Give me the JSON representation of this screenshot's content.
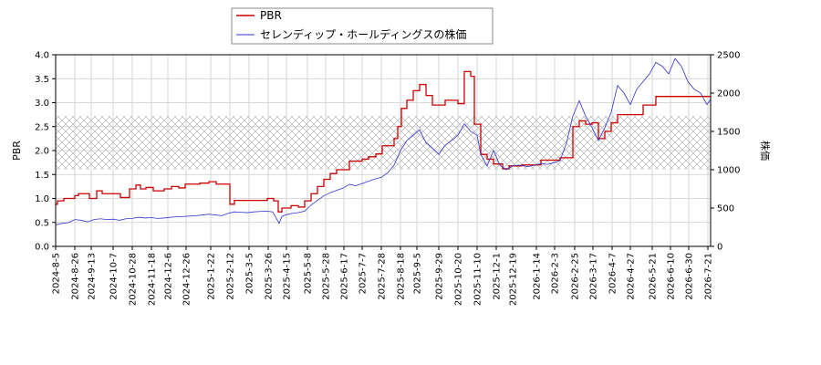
{
  "chart_data": {
    "type": "line",
    "title": "",
    "xlabel": "",
    "ylabel_left": "PBR",
    "ylabel_right": "株価",
    "ylim_left": [
      0,
      4.0
    ],
    "ylim_right": [
      0,
      2500
    ],
    "yticks_left": [
      "0.0",
      "0.5",
      "1.0",
      "1.5",
      "2.0",
      "2.5",
      "3.0",
      "3.5",
      "4.0"
    ],
    "yticks_right": [
      "0",
      "500",
      "1000",
      "1500",
      "2000",
      "2500"
    ],
    "x_start": "2024-08-05",
    "x_end": "2026-07-24",
    "xticks": [
      "2024-8-5",
      "2024-8-26",
      "2024-9-13",
      "2024-10-7",
      "2024-10-28",
      "2024-11-18",
      "2024-12-6",
      "2024-12-26",
      "2025-1-22",
      "2025-2-12",
      "2025-3-5",
      "2025-3-26",
      "2025-4-15",
      "2025-5-8",
      "2025-5-28",
      "2025-6-17",
      "2025-7-7",
      "2025-7-28",
      "2025-8-18",
      "2025-9-5",
      "2025-9-29",
      "2025-10-20",
      "2025-11-10",
      "2025-12-1",
      "2025-12-19",
      "2026-1-14",
      "2026-2-3",
      "2026-2-25",
      "2026-3-17",
      "2026-4-7",
      "2026-4-27",
      "2026-5-21",
      "2026-6-10",
      "2026-6-30",
      "2026-7-21"
    ],
    "grid": true,
    "legend_position": "top-center",
    "hatched_band_right": [
      1000,
      1700
    ],
    "series": [
      {
        "name": "PBR",
        "axis": "left",
        "color": "#cc0000",
        "style": "step",
        "points": [
          [
            "2024-08-05",
            0.88
          ],
          [
            "2024-08-07",
            0.95
          ],
          [
            "2024-08-14",
            1.0
          ],
          [
            "2024-08-26",
            1.06
          ],
          [
            "2024-08-30",
            1.1
          ],
          [
            "2024-09-11",
            1.0
          ],
          [
            "2024-09-19",
            1.16
          ],
          [
            "2024-09-25",
            1.1
          ],
          [
            "2024-10-15",
            1.02
          ],
          [
            "2024-10-25",
            1.2
          ],
          [
            "2024-11-01",
            1.28
          ],
          [
            "2024-11-06",
            1.2
          ],
          [
            "2024-11-12",
            1.23
          ],
          [
            "2024-11-20",
            1.16
          ],
          [
            "2024-12-02",
            1.2
          ],
          [
            "2024-12-10",
            1.25
          ],
          [
            "2024-12-18",
            1.22
          ],
          [
            "2024-12-25",
            1.3
          ],
          [
            "2025-01-10",
            1.32
          ],
          [
            "2025-01-20",
            1.35
          ],
          [
            "2025-01-28",
            1.3
          ],
          [
            "2025-02-12",
            0.88
          ],
          [
            "2025-02-17",
            0.96
          ],
          [
            "2025-03-25",
            1.0
          ],
          [
            "2025-04-01",
            0.95
          ],
          [
            "2025-04-06",
            0.72
          ],
          [
            "2025-04-10",
            0.8
          ],
          [
            "2025-04-20",
            0.85
          ],
          [
            "2025-04-28",
            0.82
          ],
          [
            "2025-05-05",
            0.95
          ],
          [
            "2025-05-12",
            1.1
          ],
          [
            "2025-05-19",
            1.25
          ],
          [
            "2025-05-26",
            1.4
          ],
          [
            "2025-06-02",
            1.52
          ],
          [
            "2025-06-09",
            1.6
          ],
          [
            "2025-06-23",
            1.78
          ],
          [
            "2025-07-07",
            1.82
          ],
          [
            "2025-07-14",
            1.87
          ],
          [
            "2025-07-22",
            1.93
          ],
          [
            "2025-07-29",
            2.1
          ],
          [
            "2025-08-11",
            2.25
          ],
          [
            "2025-08-15",
            2.5
          ],
          [
            "2025-08-19",
            2.88
          ],
          [
            "2025-08-25",
            3.05
          ],
          [
            "2025-09-01",
            3.25
          ],
          [
            "2025-09-08",
            3.38
          ],
          [
            "2025-09-15",
            3.15
          ],
          [
            "2025-09-22",
            2.95
          ],
          [
            "2025-10-06",
            3.05
          ],
          [
            "2025-10-20",
            2.98
          ],
          [
            "2025-10-27",
            3.65
          ],
          [
            "2025-11-03",
            3.55
          ],
          [
            "2025-11-07",
            2.55
          ],
          [
            "2025-11-14",
            1.92
          ],
          [
            "2025-11-21",
            1.82
          ],
          [
            "2025-11-28",
            1.72
          ],
          [
            "2025-12-08",
            1.62
          ],
          [
            "2025-12-15",
            1.68
          ],
          [
            "2025-12-29",
            1.7
          ],
          [
            "2026-01-19",
            1.8
          ],
          [
            "2026-02-09",
            1.85
          ],
          [
            "2026-02-23",
            2.5
          ],
          [
            "2026-03-02",
            2.62
          ],
          [
            "2026-03-09",
            2.55
          ],
          [
            "2026-03-16",
            2.58
          ],
          [
            "2026-03-23",
            2.25
          ],
          [
            "2026-03-30",
            2.4
          ],
          [
            "2026-04-06",
            2.58
          ],
          [
            "2026-04-13",
            2.75
          ],
          [
            "2026-05-11",
            2.95
          ],
          [
            "2026-05-25",
            3.13
          ],
          [
            "2026-07-24",
            3.13
          ]
        ]
      },
      {
        "name": "セレンディップ・ホールディングスの株価",
        "axis": "right",
        "color": "#3333cc",
        "style": "line",
        "points": [
          [
            "2024-08-05",
            280
          ],
          [
            "2024-08-12",
            300
          ],
          [
            "2024-08-19",
            310
          ],
          [
            "2024-08-26",
            350
          ],
          [
            "2024-09-02",
            340
          ],
          [
            "2024-09-09",
            320
          ],
          [
            "2024-09-16",
            350
          ],
          [
            "2024-09-23",
            360
          ],
          [
            "2024-09-30",
            350
          ],
          [
            "2024-10-07",
            355
          ],
          [
            "2024-10-14",
            340
          ],
          [
            "2024-10-21",
            360
          ],
          [
            "2024-10-28",
            365
          ],
          [
            "2024-11-04",
            380
          ],
          [
            "2024-11-11",
            370
          ],
          [
            "2024-11-18",
            375
          ],
          [
            "2024-11-25",
            365
          ],
          [
            "2024-12-02",
            370
          ],
          [
            "2024-12-09",
            380
          ],
          [
            "2024-12-16",
            385
          ],
          [
            "2024-12-23",
            390
          ],
          [
            "2024-12-30",
            395
          ],
          [
            "2025-01-06",
            400
          ],
          [
            "2025-01-13",
            410
          ],
          [
            "2025-01-20",
            420
          ],
          [
            "2025-01-27",
            410
          ],
          [
            "2025-02-03",
            400
          ],
          [
            "2025-02-10",
            430
          ],
          [
            "2025-02-17",
            450
          ],
          [
            "2025-02-24",
            445
          ],
          [
            "2025-03-03",
            440
          ],
          [
            "2025-03-10",
            450
          ],
          [
            "2025-03-17",
            455
          ],
          [
            "2025-03-24",
            460
          ],
          [
            "2025-03-31",
            450
          ],
          [
            "2025-04-07",
            300
          ],
          [
            "2025-04-10",
            390
          ],
          [
            "2025-04-14",
            410
          ],
          [
            "2025-04-21",
            430
          ],
          [
            "2025-04-28",
            440
          ],
          [
            "2025-05-05",
            460
          ],
          [
            "2025-05-12",
            540
          ],
          [
            "2025-05-19",
            600
          ],
          [
            "2025-05-26",
            660
          ],
          [
            "2025-06-02",
            700
          ],
          [
            "2025-06-09",
            730
          ],
          [
            "2025-06-16",
            760
          ],
          [
            "2025-06-23",
            810
          ],
          [
            "2025-06-30",
            790
          ],
          [
            "2025-07-07",
            820
          ],
          [
            "2025-07-14",
            850
          ],
          [
            "2025-07-21",
            880
          ],
          [
            "2025-07-28",
            900
          ],
          [
            "2025-08-04",
            960
          ],
          [
            "2025-08-11",
            1060
          ],
          [
            "2025-08-18",
            1250
          ],
          [
            "2025-08-25",
            1380
          ],
          [
            "2025-09-01",
            1450
          ],
          [
            "2025-09-08",
            1520
          ],
          [
            "2025-09-15",
            1350
          ],
          [
            "2025-09-22",
            1280
          ],
          [
            "2025-09-29",
            1200
          ],
          [
            "2025-10-06",
            1320
          ],
          [
            "2025-10-13",
            1380
          ],
          [
            "2025-10-20",
            1450
          ],
          [
            "2025-10-27",
            1600
          ],
          [
            "2025-11-03",
            1500
          ],
          [
            "2025-11-10",
            1450
          ],
          [
            "2025-11-14",
            1200
          ],
          [
            "2025-11-21",
            1050
          ],
          [
            "2025-11-28",
            1250
          ],
          [
            "2025-12-05",
            1060
          ],
          [
            "2025-12-12",
            1000
          ],
          [
            "2025-12-19",
            1050
          ],
          [
            "2025-12-26",
            1060
          ],
          [
            "2026-01-05",
            1040
          ],
          [
            "2026-01-12",
            1060
          ],
          [
            "2026-01-19",
            1080
          ],
          [
            "2026-01-26",
            1070
          ],
          [
            "2026-02-02",
            1090
          ],
          [
            "2026-02-09",
            1120
          ],
          [
            "2026-02-16",
            1350
          ],
          [
            "2026-02-23",
            1700
          ],
          [
            "2026-03-02",
            1900
          ],
          [
            "2026-03-09",
            1700
          ],
          [
            "2026-03-16",
            1550
          ],
          [
            "2026-03-23",
            1380
          ],
          [
            "2026-03-30",
            1550
          ],
          [
            "2026-04-06",
            1750
          ],
          [
            "2026-04-13",
            2100
          ],
          [
            "2026-04-20",
            2000
          ],
          [
            "2026-04-27",
            1850
          ],
          [
            "2026-05-04",
            2050
          ],
          [
            "2026-05-11",
            2150
          ],
          [
            "2026-05-18",
            2250
          ],
          [
            "2026-05-25",
            2400
          ],
          [
            "2026-06-01",
            2350
          ],
          [
            "2026-06-08",
            2250
          ],
          [
            "2026-06-15",
            2450
          ],
          [
            "2026-06-22",
            2350
          ],
          [
            "2026-06-29",
            2150
          ],
          [
            "2026-07-06",
            2050
          ],
          [
            "2026-07-13",
            2000
          ],
          [
            "2026-07-20",
            1850
          ],
          [
            "2026-07-24",
            1920
          ]
        ]
      }
    ]
  }
}
